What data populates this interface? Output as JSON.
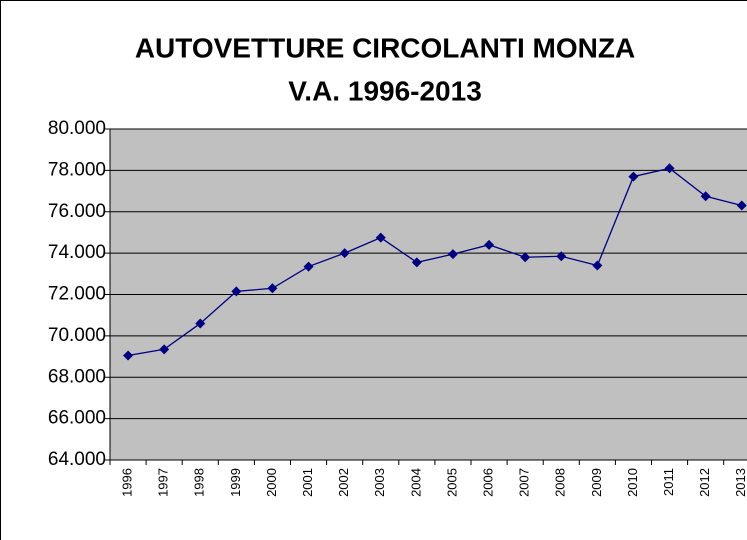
{
  "chart_data": {
    "type": "line",
    "title": [
      "AUTOVETTURE CIRCOLANTI MONZA",
      "V.A. 1996-2013"
    ],
    "categories": [
      "1996",
      "1997",
      "1998",
      "1999",
      "2000",
      "2001",
      "2002",
      "2003",
      "2004",
      "2005",
      "2006",
      "2007",
      "2008",
      "2009",
      "2010",
      "2011",
      "2012",
      "2013"
    ],
    "series": [
      {
        "color": "#000080",
        "values": [
          69050,
          69350,
          70600,
          72150,
          72300,
          73350,
          74000,
          74750,
          73550,
          73950,
          74400,
          73800,
          73850,
          73400,
          77700,
          78100,
          76750,
          76300
        ]
      }
    ],
    "ylim": [
      64000,
      80000
    ],
    "yticks": [
      {
        "value": 64000,
        "label": "64.000"
      },
      {
        "value": 66000,
        "label": "66.000"
      },
      {
        "value": 68000,
        "label": "68.000"
      },
      {
        "value": 70000,
        "label": "70.000"
      },
      {
        "value": 72000,
        "label": "72.000"
      },
      {
        "value": 74000,
        "label": "74.000"
      },
      {
        "value": 76000,
        "label": "76.000"
      },
      {
        "value": 78000,
        "label": "78.000"
      },
      {
        "value": 80000,
        "label": "80.000"
      }
    ],
    "grid": true,
    "plot_background": "#c0c0c0"
  }
}
